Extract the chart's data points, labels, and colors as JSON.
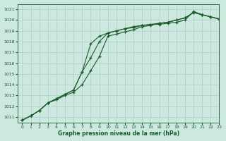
{
  "title": "Graphe pression niveau de la mer (hPa)",
  "background_color": "#cce8df",
  "grid_color": "#b0cccc",
  "line_color": "#1a5c2a",
  "xlim": [
    -0.5,
    23
  ],
  "ylim": [
    1010.5,
    1021.5
  ],
  "yticks": [
    1011,
    1012,
    1013,
    1014,
    1015,
    1016,
    1017,
    1018,
    1019,
    1020,
    1021
  ],
  "xticks": [
    0,
    1,
    2,
    3,
    4,
    5,
    6,
    7,
    8,
    9,
    10,
    11,
    12,
    13,
    14,
    15,
    16,
    17,
    18,
    19,
    20,
    21,
    22,
    23
  ],
  "series1": [
    1010.7,
    1011.1,
    1011.6,
    1012.3,
    1012.6,
    1013.0,
    1013.3,
    1014.0,
    1015.3,
    1016.6,
    1018.5,
    1018.7,
    1018.9,
    1019.1,
    1019.4,
    1019.5,
    1019.7,
    1019.8,
    1020.0,
    1020.2,
    1020.7,
    1020.5,
    1020.3,
    1020.1
  ],
  "series2": [
    1010.7,
    1011.1,
    1011.6,
    1012.3,
    1012.7,
    1013.1,
    1013.5,
    1015.2,
    1016.5,
    1018.0,
    1018.8,
    1019.0,
    1019.2,
    1019.4,
    1019.5,
    1019.6,
    1019.7,
    1019.8,
    1020.0,
    1020.2,
    1020.7,
    1020.5,
    1020.3,
    1020.1
  ],
  "series3": [
    1010.7,
    1011.1,
    1011.6,
    1012.3,
    1012.7,
    1013.1,
    1013.5,
    1015.2,
    1017.8,
    1018.5,
    1018.8,
    1019.0,
    1019.2,
    1019.3,
    1019.5,
    1019.6,
    1019.6,
    1019.7,
    1019.8,
    1020.0,
    1020.8,
    1020.5,
    1020.3,
    1020.1
  ]
}
